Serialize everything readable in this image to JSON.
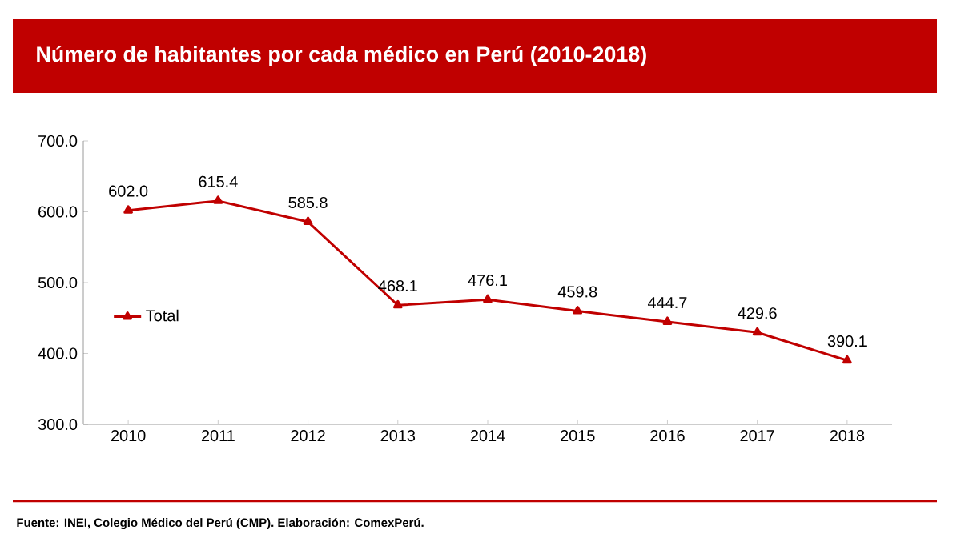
{
  "chart_data": {
    "type": "line",
    "title": "Número de habitantes por cada médico en Perú (2010-2018)",
    "categories": [
      "2010",
      "2011",
      "2012",
      "2013",
      "2014",
      "2015",
      "2016",
      "2017",
      "2018"
    ],
    "series": [
      {
        "name": "Total",
        "color": "#c00000",
        "values": [
          602.0,
          615.4,
          585.8,
          468.1,
          476.1,
          459.8,
          444.7,
          429.6,
          390.1
        ],
        "value_labels": [
          "602.0",
          "615.4",
          "585.8",
          "468.1",
          "476.1",
          "459.8",
          "444.7",
          "429.6",
          "390.1"
        ]
      }
    ],
    "ylim": [
      300,
      700
    ],
    "yticks": [
      {
        "value": 300,
        "label": "300.0"
      },
      {
        "value": 400,
        "label": "400.0"
      },
      {
        "value": 500,
        "label": "500.0"
      },
      {
        "value": 600,
        "label": "600.0"
      },
      {
        "value": 700,
        "label": "700.0"
      }
    ],
    "grid": false,
    "legend": "left",
    "marker": "triangle",
    "line_style": "solid",
    "annotations": [
      "Fuente: INEI, Colegio Médico del Perú (CMP). Elaboración: ComexPerú."
    ]
  }
}
